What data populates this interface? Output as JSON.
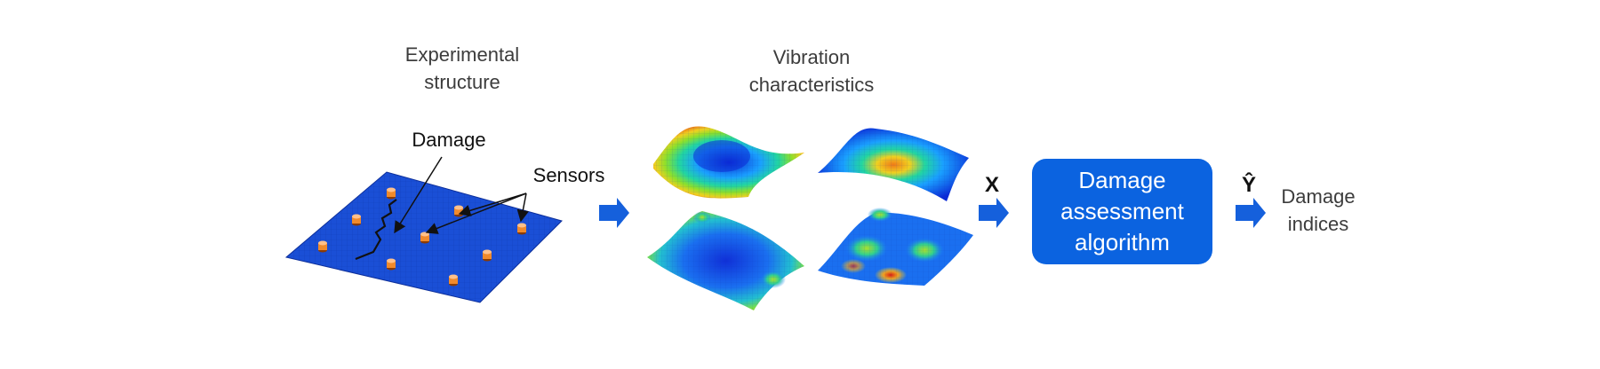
{
  "labels": {
    "experimental_structure": [
      "Experimental",
      "structure"
    ],
    "damage": "Damage",
    "sensors": "Sensors",
    "vibration_characteristics": [
      "Vibration",
      "characteristics"
    ],
    "x_symbol": "X",
    "algorithm": [
      "Damage",
      "assessment",
      "algorithm"
    ],
    "y_hat_symbol": "Ŷ",
    "damage_indices": [
      "Damage",
      "indices"
    ]
  },
  "colors": {
    "plate_blue": "#1a4fd6",
    "arrow_blue": "#1560dc",
    "algorithm_box": "#0b63e0",
    "sensor_orange": "#f08a2c",
    "mode_shape_colormap": [
      "#0b2ad6",
      "#1aa0ff",
      "#22d6a0",
      "#8ee02a",
      "#f0d020",
      "#f07a18",
      "#d81e12"
    ]
  },
  "icons": {
    "flow_arrows": "right-arrow-icon",
    "sensor_marker": "cylinder-sensor-icon"
  }
}
